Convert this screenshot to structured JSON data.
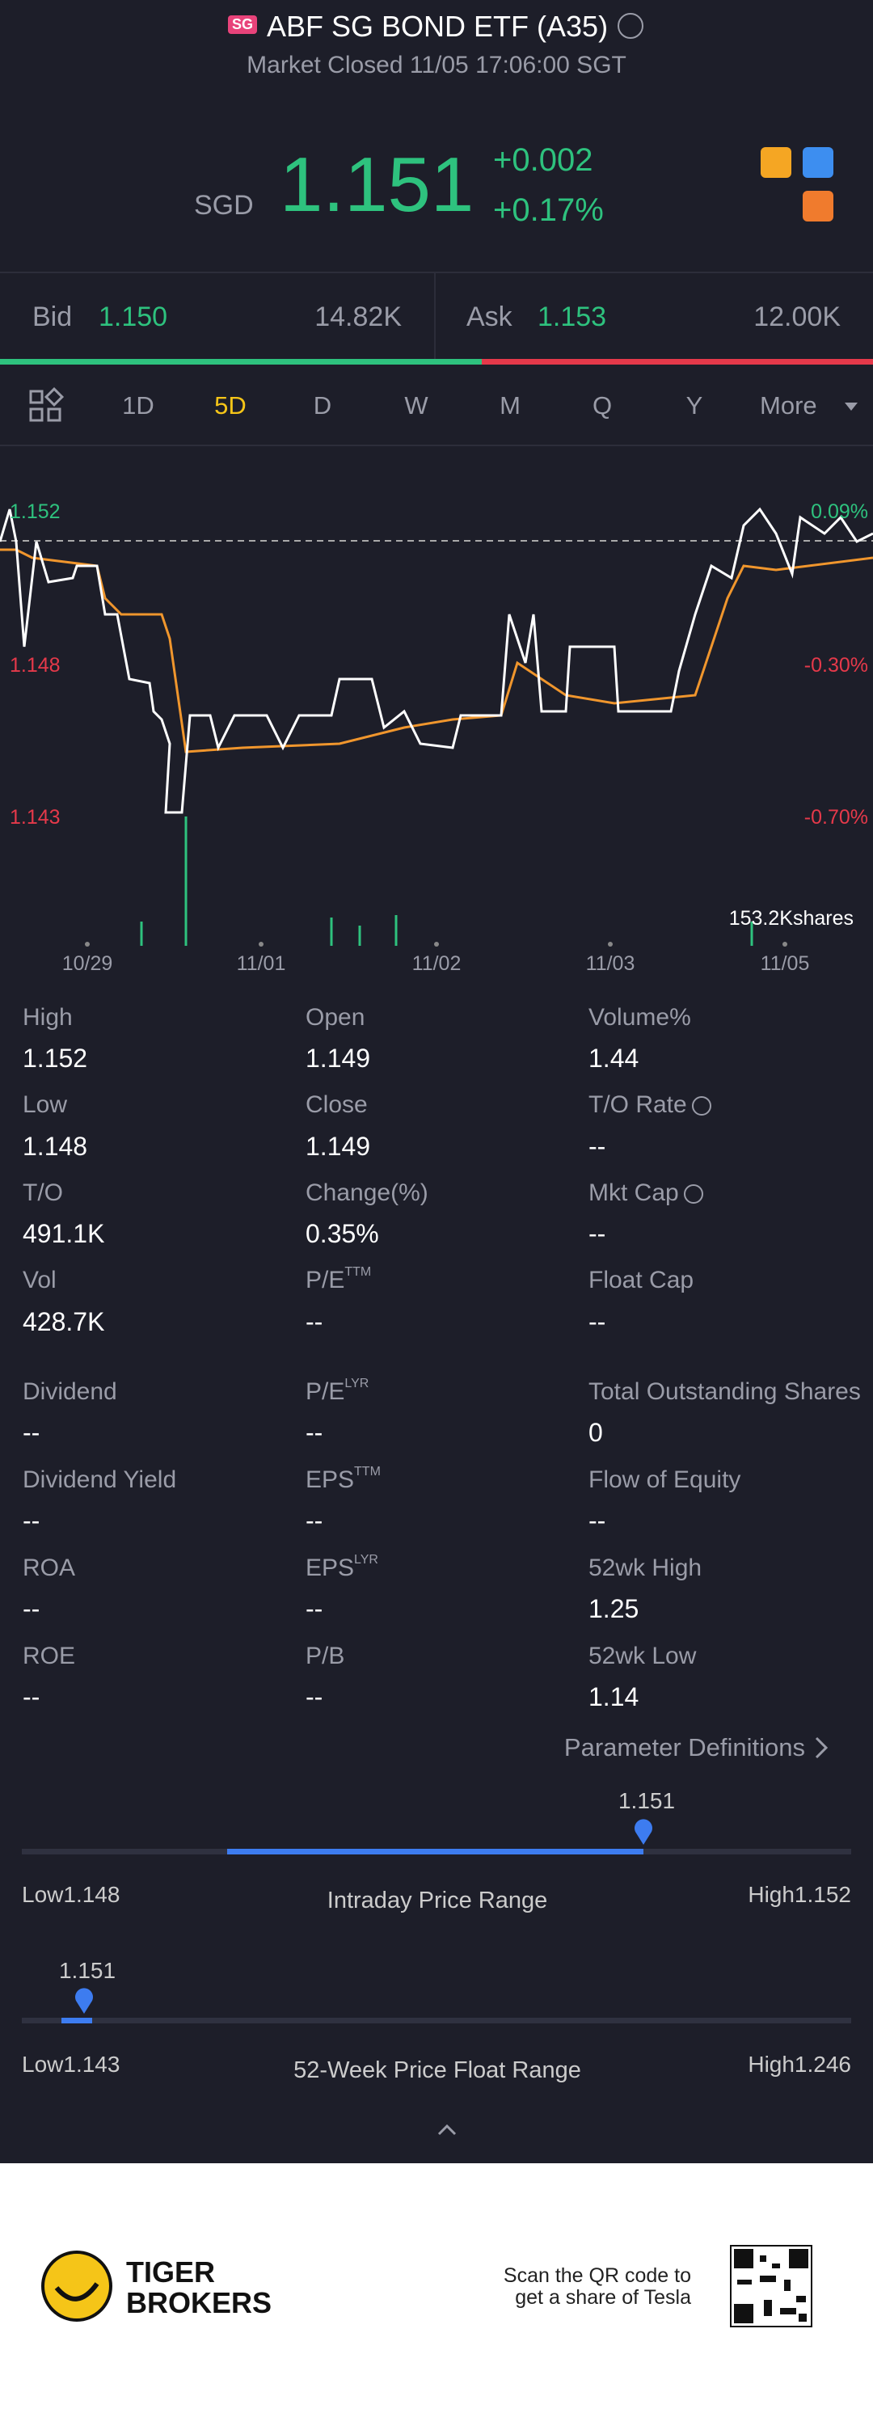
{
  "header": {
    "badge": "SG",
    "title": "ABF SG BOND ETF (A35)",
    "subtitle": "Market Closed 11/05 17:06:00 SGT"
  },
  "quote": {
    "currency": "SGD",
    "price": "1.151",
    "change": "+0.002",
    "change_pct": "+0.17%"
  },
  "bid_ask": {
    "bid_label": "Bid",
    "bid": "1.150",
    "bid_size": "14.82K",
    "ask_label": "Ask",
    "ask": "1.153",
    "ask_size": "12.00K"
  },
  "tabs": [
    "1D",
    "5D",
    "D",
    "W",
    "M",
    "Q",
    "Y",
    "More"
  ],
  "chart": {
    "left_labels": [
      "1.152",
      "1.148",
      "1.143"
    ],
    "right_labels": [
      "0.09%",
      "-0.30%",
      "-0.70%"
    ],
    "volume_label": "153.2Kshares",
    "dates": [
      "10/29",
      "11/01",
      "11/02",
      "11/03",
      "11/05"
    ]
  },
  "stats": [
    [
      {
        "label": "High",
        "value": "1.152"
      },
      {
        "label": "Open",
        "value": "1.149"
      },
      {
        "label": "Volume%",
        "value": "1.44"
      }
    ],
    [
      {
        "label": "Low",
        "value": "1.148"
      },
      {
        "label": "Close",
        "value": "1.149"
      },
      {
        "label": "T/O Rate",
        "value": "--"
      }
    ],
    [
      {
        "label": "T/O",
        "value": "491.1K"
      },
      {
        "label": "Change(%)",
        "value": "0.35%"
      },
      {
        "label": "Mkt Cap",
        "value": "--"
      }
    ],
    [
      {
        "label": "Vol",
        "value": "428.7K"
      },
      {
        "label": "P/E",
        "sup": "TTM",
        "value": "--"
      },
      {
        "label": "Float Cap",
        "value": "--"
      }
    ],
    [
      {
        "label": "Dividend",
        "value": "--"
      },
      {
        "label": "P/E",
        "sup": "LYR",
        "value": "--"
      },
      {
        "label": "Total Outstanding Shares",
        "value": "0"
      }
    ],
    [
      {
        "label": "Dividend Yield",
        "value": "--"
      },
      {
        "label": "EPS",
        "sup": "TTM",
        "value": "--"
      },
      {
        "label": "Flow of Equity",
        "value": "--"
      }
    ],
    [
      {
        "label": "ROA",
        "value": "--"
      },
      {
        "label": "EPS",
        "sup": "LYR",
        "value": "--"
      },
      {
        "label": "52wk High",
        "value": "1.25"
      }
    ],
    [
      {
        "label": "ROE",
        "value": "--"
      },
      {
        "label": "P/B",
        "value": "--"
      },
      {
        "label": "52wk Low",
        "value": "1.14"
      }
    ]
  ],
  "parameter_definitions": "Parameter Definitions",
  "intraday": {
    "current": "1.151",
    "low": "Low1.148",
    "title": "Intraday Price Range",
    "high": "High1.152"
  },
  "week52": {
    "current": "1.151",
    "low": "Low1.143",
    "title": "52-Week Price Float Range",
    "high": "High1.246"
  },
  "footer": {
    "brand_line1": "TIGER",
    "brand_line2": "BROKERS",
    "scan_line1": "Scan the QR code to",
    "scan_line2": "get a share of Tesla"
  }
}
